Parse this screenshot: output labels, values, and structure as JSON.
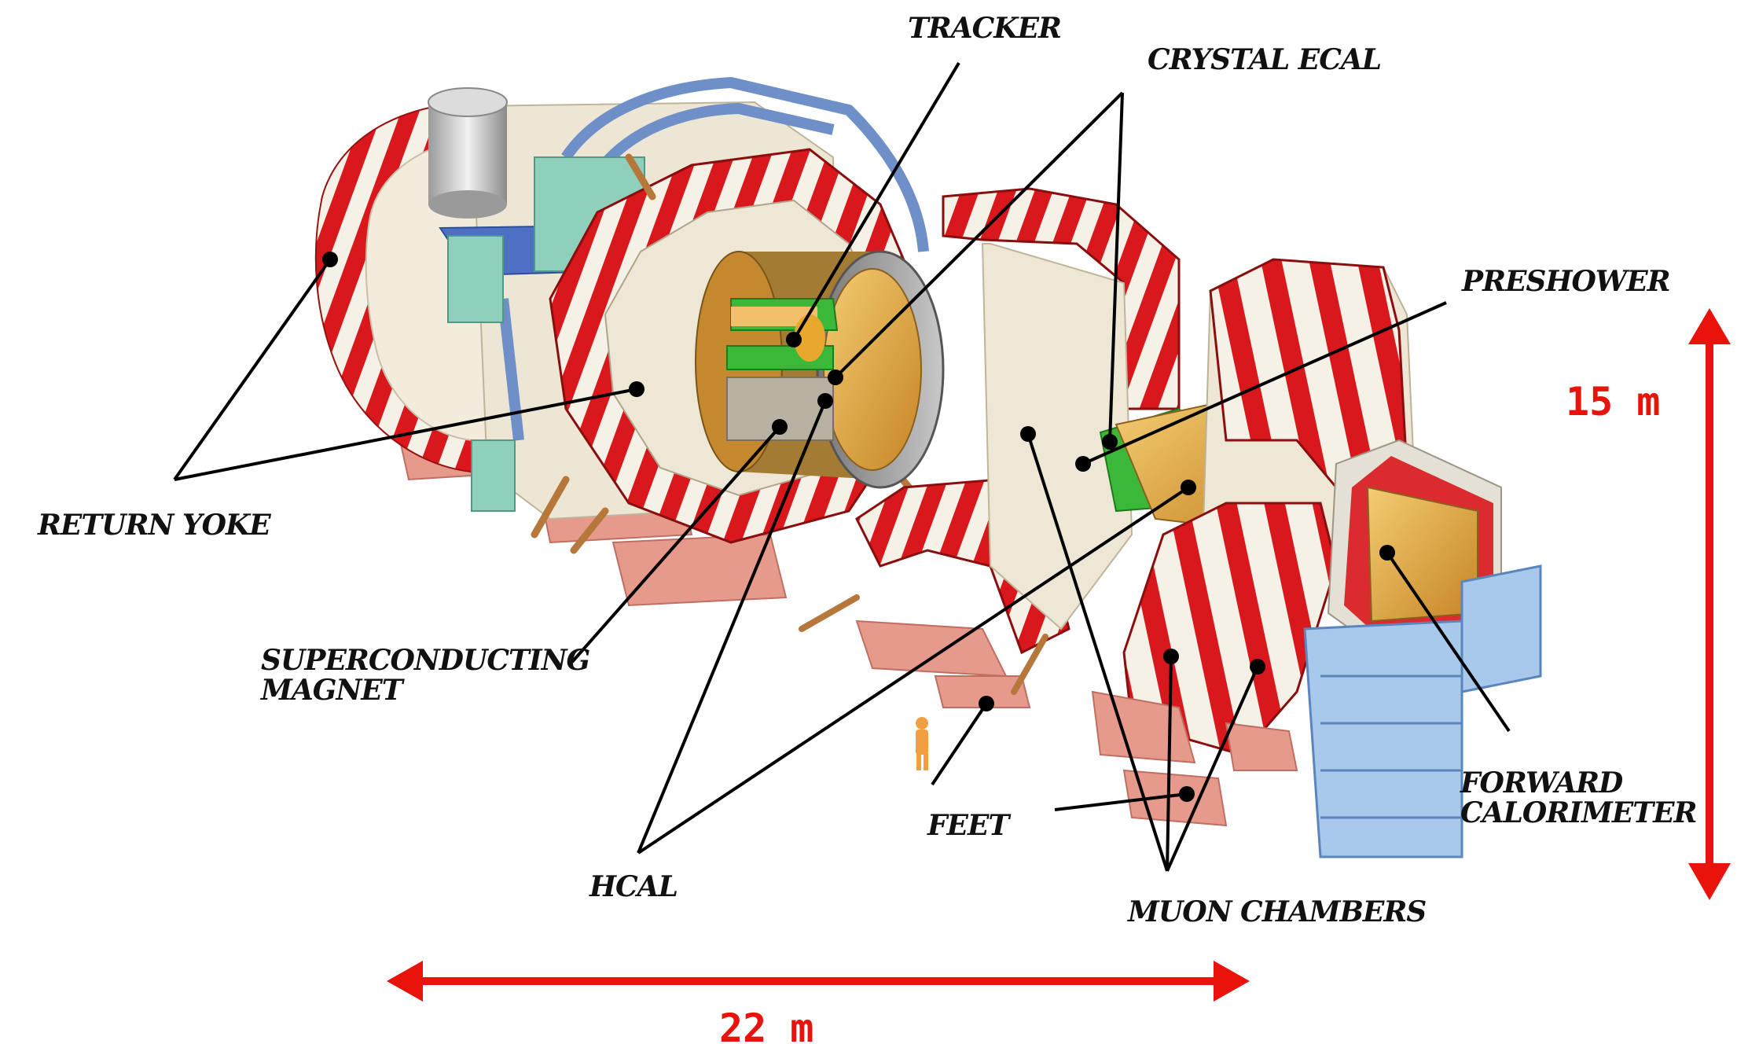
{
  "labels": {
    "tracker": "TRACKER",
    "crystal_ecal": "CRYSTAL ECAL",
    "preshower": "PRESHOWER",
    "return_yoke": "RETURN YOKE",
    "superconducting_magnet_line1": "SUPERCONDUCTING",
    "superconducting_magnet_line2": "MAGNET",
    "hcal": "HCAL",
    "feet": "FEET",
    "muon_chambers": "MUON CHAMBERS",
    "forward_calorimeter_line1": "FORWARD",
    "forward_calorimeter_line2": "CALORIMETER"
  },
  "dimensions": {
    "height": "15 m",
    "width": "22 m",
    "color": "#e8140c"
  },
  "colors": {
    "stripe_red": "#d8181c",
    "stripe_white": "#f5f1e6",
    "steel_blue": "#6f8fc9",
    "ecal_green": "#3cb838",
    "hcal_orange": "#e8a82e",
    "teal_box": "#8fd0bc",
    "feet_pink": "#e69a8c"
  }
}
